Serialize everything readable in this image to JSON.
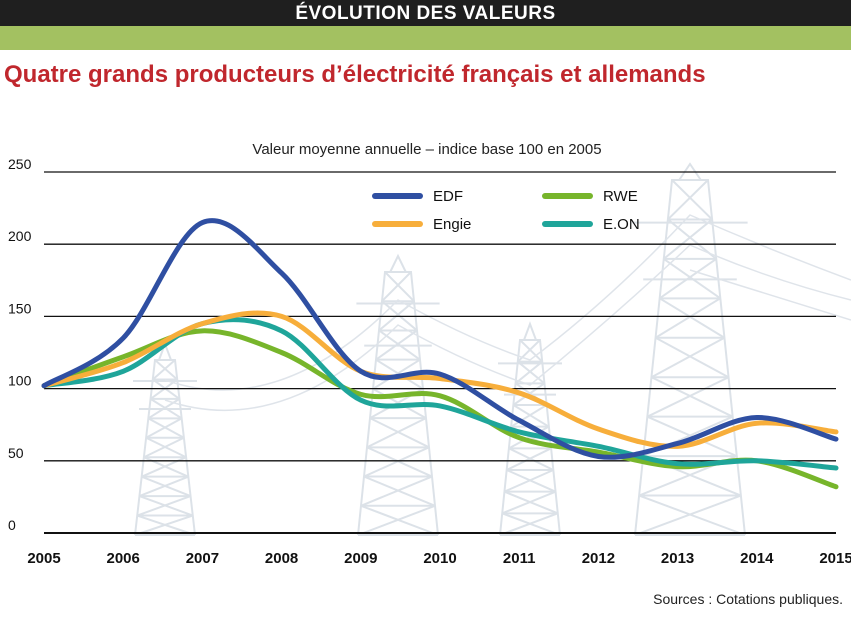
{
  "header": {
    "label": "ÉVOLUTION DES VALEURS"
  },
  "title": "Quatre grands producteurs d’électricité français et allemands",
  "source": "Sources : Cotations publiques.",
  "colors": {
    "header_bg": "#1f1f1f",
    "header_accent": "#a3c161",
    "title": "#c0272d"
  },
  "chart_data": {
    "type": "line",
    "subtitle": "Valeur moyenne annuelle – indice base 100 en 2005",
    "x": [
      2005,
      2006,
      2007,
      2008,
      2009,
      2010,
      2011,
      2012,
      2013,
      2014,
      2015
    ],
    "xlabels": [
      "2005",
      "2006",
      "2007",
      "2008",
      "2009",
      "2010",
      "2011",
      "2012",
      "2013",
      "2014",
      "2015"
    ],
    "ylim": [
      0,
      250
    ],
    "yticks": [
      0,
      50,
      100,
      150,
      200,
      250
    ],
    "ytick_labels": [
      "0",
      "50",
      "100",
      "150",
      "200",
      "250"
    ],
    "grid": true,
    "legend_position": "top-right",
    "background_illustration": "electricity-pylons",
    "series": [
      {
        "name": "EDF",
        "color": "#2f4fa2",
        "values": [
          102,
          135,
          215,
          180,
          112,
          110,
          78,
          53,
          62,
          80,
          65
        ]
      },
      {
        "name": "Engie",
        "color": "#f7ae3b",
        "values": [
          102,
          118,
          145,
          150,
          112,
          107,
          97,
          72,
          60,
          76,
          70
        ]
      },
      {
        "name": "RWE",
        "color": "#77b52b",
        "values": [
          102,
          122,
          140,
          125,
          96,
          95,
          66,
          56,
          46,
          50,
          32
        ]
      },
      {
        "name": "E.ON",
        "color": "#1fa59a",
        "values": [
          102,
          112,
          145,
          140,
          92,
          88,
          70,
          60,
          48,
          50,
          45
        ]
      }
    ]
  }
}
